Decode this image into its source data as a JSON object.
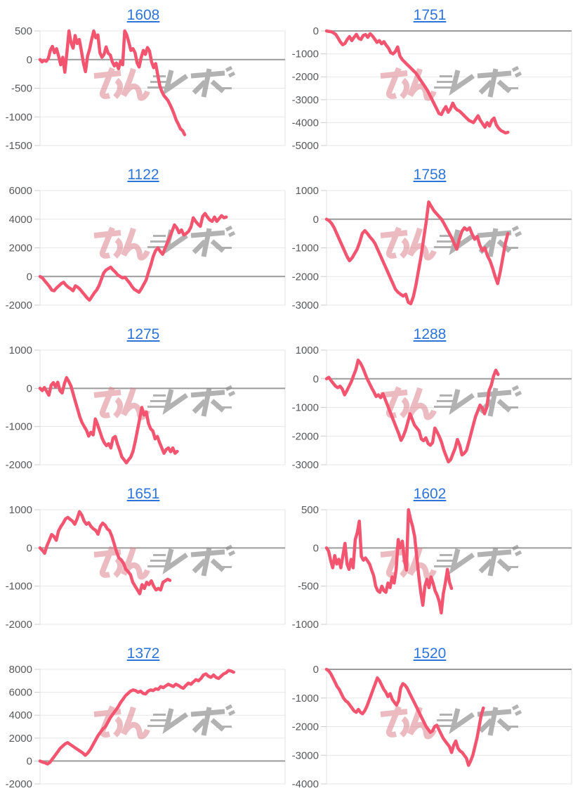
{
  "page": {
    "title": "machine-daily-slump-graphs"
  },
  "watermark": {
    "label": "みんレポ",
    "pink_text": "みん",
    "gray_text": "レポ",
    "pink_color": "#db7985",
    "gray_color": "#8f8f8f"
  },
  "styles": {
    "line_color": "#f3546f",
    "grid_color": "#e7e7e7",
    "zero_line_color": "#9b9b9b",
    "tick_color": "#cccccc",
    "plot_border_color": "#e2e2e2",
    "label_color": "#58595b",
    "title_color": "#2d74d9",
    "background": "#ffffff"
  },
  "chart_data": [
    {
      "type": "line",
      "title": "1608",
      "legend": "none",
      "grid": true,
      "xlabel": "",
      "ylabel": "",
      "yticks": [
        500,
        0,
        -500,
        -1000,
        -1500
      ],
      "ylim": [
        -1500,
        500
      ],
      "x_end_fraction": 0.59,
      "values": [
        0,
        -40,
        -10,
        -30,
        20,
        160,
        230,
        120,
        190,
        60,
        -90,
        40,
        -220,
        110,
        500,
        300,
        200,
        420,
        280,
        350,
        160,
        -60,
        -210,
        60,
        180,
        350,
        500,
        380,
        430,
        120,
        40,
        90,
        220,
        110,
        80,
        -40,
        -110,
        -60,
        -160,
        -30,
        -90,
        500,
        430,
        300,
        160,
        190,
        120,
        -60,
        -130,
        40,
        160,
        90,
        210,
        150,
        -40,
        -140,
        -70,
        -270,
        -460,
        -560,
        -630,
        -670,
        -720,
        -790,
        -870,
        -960,
        -1060,
        -1130,
        -1210,
        -1240,
        -1310
      ]
    },
    {
      "type": "line",
      "title": "1751",
      "legend": "none",
      "grid": true,
      "xlabel": "",
      "ylabel": "",
      "yticks": [
        0,
        -1000,
        -2000,
        -3000,
        -4000,
        -5000
      ],
      "ylim": [
        -5000,
        0
      ],
      "x_end_fraction": 0.74,
      "values": [
        0,
        -20,
        -30,
        -80,
        -150,
        -300,
        -480,
        -600,
        -550,
        -380,
        -250,
        -420,
        -280,
        -150,
        -320,
        -370,
        -200,
        -160,
        -280,
        -120,
        -220,
        -360,
        -500,
        -420,
        -560,
        -470,
        -620,
        -750,
        -950,
        -1000,
        -900,
        -700,
        -1100,
        -1250,
        -1350,
        -1450,
        -1550,
        -1650,
        -1750,
        -1850,
        -2000,
        -2150,
        -2300,
        -2450,
        -2600,
        -2800,
        -3000,
        -3200,
        -3400,
        -3600,
        -3650,
        -3450,
        -3300,
        -3550,
        -3400,
        -3150,
        -3350,
        -3450,
        -3500,
        -3600,
        -3700,
        -3800,
        -3900,
        -3950,
        -4000,
        -3850,
        -3700,
        -3900,
        -4050,
        -4200,
        -4000,
        -4150,
        -3900,
        -3800,
        -4100,
        -4250,
        -4350,
        -4400,
        -4450,
        -4420
      ]
    },
    {
      "type": "line",
      "title": "1122",
      "legend": "none",
      "grid": true,
      "xlabel": "",
      "ylabel": "",
      "yticks": [
        6000,
        4000,
        2000,
        0,
        -2000
      ],
      "ylim": [
        -2000,
        6000
      ],
      "x_end_fraction": 0.76,
      "values": [
        0,
        -100,
        -300,
        -500,
        -700,
        -950,
        -1000,
        -800,
        -650,
        -500,
        -400,
        -600,
        -750,
        -850,
        -1000,
        -650,
        -750,
        -900,
        -1100,
        -1300,
        -1500,
        -1650,
        -1400,
        -1150,
        -950,
        -650,
        -200,
        250,
        450,
        550,
        650,
        450,
        300,
        100,
        0,
        -100,
        -50,
        -250,
        -450,
        -700,
        -900,
        -1000,
        -1100,
        -850,
        -550,
        -250,
        300,
        800,
        1400,
        1800,
        2000,
        1750,
        1550,
        1950,
        2350,
        2750,
        3150,
        3600,
        3400,
        3050,
        3250,
        2900,
        3000,
        3150,
        3450,
        4100,
        3850,
        3650,
        3500,
        4200,
        4400,
        4150,
        3950,
        3850,
        4150,
        3850,
        4050,
        4250,
        4100,
        4150
      ]
    },
    {
      "type": "line",
      "title": "1758",
      "legend": "none",
      "grid": true,
      "xlabel": "",
      "ylabel": "",
      "yticks": [
        1000,
        0,
        -1000,
        -2000,
        -3000
      ],
      "ylim": [
        -3000,
        1000
      ],
      "x_end_fraction": 0.74,
      "values": [
        0,
        -50,
        -150,
        -300,
        -500,
        -700,
        -900,
        -1100,
        -1300,
        -1450,
        -1350,
        -1200,
        -1050,
        -800,
        -500,
        -400,
        -500,
        -620,
        -720,
        -850,
        -1050,
        -1250,
        -1450,
        -1650,
        -1850,
        -2050,
        -2250,
        -2450,
        -2550,
        -2620,
        -2680,
        -2620,
        -2900,
        -2950,
        -2700,
        -2300,
        -1800,
        -1300,
        -700,
        -100,
        600,
        450,
        300,
        200,
        100,
        0,
        -150,
        -320,
        -480,
        -650,
        -850,
        -1050,
        -700,
        -420,
        -300,
        -380,
        -300,
        -520,
        -700,
        -600,
        -900,
        -1100,
        -1000,
        -1280,
        -1450,
        -1700,
        -2000,
        -2250,
        -1850,
        -1350,
        -850,
        -500
      ]
    },
    {
      "type": "line",
      "title": "1275",
      "legend": "none",
      "grid": true,
      "xlabel": "",
      "ylabel": "",
      "yticks": [
        1000,
        0,
        -1000,
        -2000
      ],
      "ylim": [
        -2000,
        1000
      ],
      "x_end_fraction": 0.56,
      "values": [
        0,
        -60,
        20,
        -80,
        -180,
        80,
        150,
        40,
        160,
        -60,
        -120,
        120,
        280,
        180,
        60,
        -150,
        -350,
        -550,
        -750,
        -900,
        -1000,
        -1100,
        -1250,
        -1150,
        -1220,
        -800,
        -950,
        -1120,
        -1300,
        -1420,
        -1500,
        -1450,
        -1560,
        -1300,
        -1260,
        -1460,
        -1620,
        -1800,
        -1870,
        -1950,
        -1870,
        -1800,
        -1650,
        -1400,
        -1100,
        -800,
        -500,
        -700,
        -620,
        -920,
        -1060,
        -1120,
        -1320,
        -1260,
        -1420,
        -1560,
        -1700,
        -1600,
        -1560,
        -1660,
        -1560,
        -1700,
        -1650
      ]
    },
    {
      "type": "line",
      "title": "1288",
      "legend": "none",
      "grid": true,
      "xlabel": "",
      "ylabel": "",
      "yticks": [
        1000,
        0,
        -1000,
        -2000,
        -3000
      ],
      "ylim": [
        -3000,
        1000
      ],
      "x_end_fraction": 0.7,
      "values": [
        0,
        50,
        -60,
        -160,
        -260,
        -310,
        -260,
        -360,
        -560,
        -420,
        -260,
        -100,
        120,
        320,
        650,
        550,
        400,
        200,
        0,
        -160,
        -320,
        -460,
        -620,
        -560,
        -660,
        -520,
        -720,
        -920,
        -1120,
        -1320,
        -1520,
        -1720,
        -1920,
        -2150,
        -2000,
        -1800,
        -1520,
        -1220,
        -1420,
        -1620,
        -1720,
        -1820,
        -2100,
        -2160,
        -2060,
        -2260,
        -2320,
        -2220,
        -1720,
        -1860,
        -2020,
        -2220,
        -2500,
        -2700,
        -2900,
        -2820,
        -2620,
        -2420,
        -2120,
        -2320,
        -2660,
        -2600,
        -2500,
        -2220,
        -1920,
        -1620,
        -1320,
        -1120,
        -920,
        -1020,
        -1220,
        -1000,
        -420,
        -220,
        100,
        300,
        150
      ]
    },
    {
      "type": "line",
      "title": "1651",
      "legend": "none",
      "grid": true,
      "xlabel": "",
      "ylabel": "",
      "yticks": [
        1000,
        0,
        -1000,
        -2000
      ],
      "ylim": [
        -2000,
        1000
      ],
      "x_end_fraction": 0.53,
      "values": [
        0,
        -60,
        -140,
        60,
        200,
        350,
        300,
        200,
        450,
        560,
        650,
        760,
        800,
        750,
        700,
        620,
        760,
        950,
        860,
        700,
        620,
        660,
        560,
        500,
        460,
        360,
        560,
        650,
        600,
        500,
        450,
        300,
        100,
        -100,
        -260,
        -310,
        -400,
        -560,
        -620,
        -700,
        -900,
        -1000,
        -1100,
        -1200,
        -960,
        -1060,
        -900,
        -960,
        -860,
        -1000,
        -1100,
        -1060,
        -1100,
        -900,
        -860,
        -820,
        -850
      ]
    },
    {
      "type": "line",
      "title": "1602",
      "legend": "none",
      "grid": true,
      "xlabel": "",
      "ylabel": "",
      "yticks": [
        500,
        0,
        -500,
        -1000
      ],
      "ylim": [
        -1000,
        500
      ],
      "x_end_fraction": 0.51,
      "values": [
        0,
        -40,
        -160,
        -260,
        -100,
        -210,
        -150,
        -260,
        -100,
        60,
        -210,
        -280,
        -150,
        -260,
        110,
        200,
        350,
        -110,
        -160,
        -130,
        -170,
        -210,
        -290,
        -360,
        -500,
        -560,
        -580,
        -500,
        -560,
        -580,
        -460,
        -520,
        -380,
        -460,
        -280,
        110,
        0,
        90,
        -160,
        -290,
        500,
        380,
        280,
        150,
        -110,
        -360,
        -580,
        -750,
        -500,
        -410,
        -520,
        -380,
        -460,
        -560,
        -620,
        -700,
        -850,
        -600,
        -460,
        -280,
        -450,
        -530
      ]
    },
    {
      "type": "line",
      "title": "1372",
      "legend": "none",
      "grid": true,
      "xlabel": "",
      "ylabel": "",
      "yticks": [
        8000,
        6000,
        4000,
        2000,
        0,
        -2000
      ],
      "ylim": [
        -2000,
        8000
      ],
      "x_end_fraction": 0.79,
      "values": [
        0,
        -100,
        -160,
        -260,
        -100,
        200,
        500,
        800,
        1100,
        1300,
        1500,
        1600,
        1450,
        1300,
        1150,
        1000,
        850,
        700,
        500,
        700,
        1000,
        1400,
        1800,
        2200,
        2500,
        2800,
        3000,
        3400,
        3800,
        4100,
        4400,
        4700,
        5100,
        5400,
        5700,
        5900,
        6100,
        6200,
        6150,
        6000,
        6100,
        5900,
        5850,
        6100,
        6200,
        6150,
        6300,
        6250,
        6500,
        6400,
        6550,
        6700,
        6600,
        6500,
        6700,
        6600,
        6450,
        6350,
        6600,
        6800,
        6700,
        6900,
        7100,
        7000,
        7200,
        7500,
        7600,
        7400,
        7300,
        7500,
        7300,
        7200,
        7400,
        7600,
        7700,
        7900,
        7850,
        7750
      ]
    },
    {
      "type": "line",
      "title": "1520",
      "legend": "none",
      "grid": true,
      "xlabel": "",
      "ylabel": "",
      "yticks": [
        0,
        -1000,
        -2000,
        -3000,
        -4000
      ],
      "ylim": [
        -4000,
        0
      ],
      "x_end_fraction": 0.64,
      "values": [
        0,
        -50,
        -150,
        -300,
        -450,
        -600,
        -700,
        -850,
        -1000,
        -1100,
        -1150,
        -1250,
        -1350,
        -1450,
        -1500,
        -1400,
        -1500,
        -1550,
        -1450,
        -1300,
        -1100,
        -900,
        -700,
        -500,
        -300,
        -400,
        -550,
        -700,
        -800,
        -950,
        -850,
        -1050,
        -1150,
        -1250,
        -1100,
        -650,
        -500,
        -550,
        -650,
        -800,
        -950,
        -1100,
        -1250,
        -1400,
        -1550,
        -1700,
        -1850,
        -2000,
        -2100,
        -2200,
        -2150,
        -2000,
        -1950,
        -2100,
        -2250,
        -2400,
        -2500,
        -2600,
        -2700,
        -2900,
        -2650,
        -2500,
        -2750,
        -2850,
        -2900,
        -3000,
        -3100,
        -3350,
        -3200,
        -3000,
        -2700,
        -2400,
        -2000,
        -1600,
        -1350
      ]
    }
  ]
}
